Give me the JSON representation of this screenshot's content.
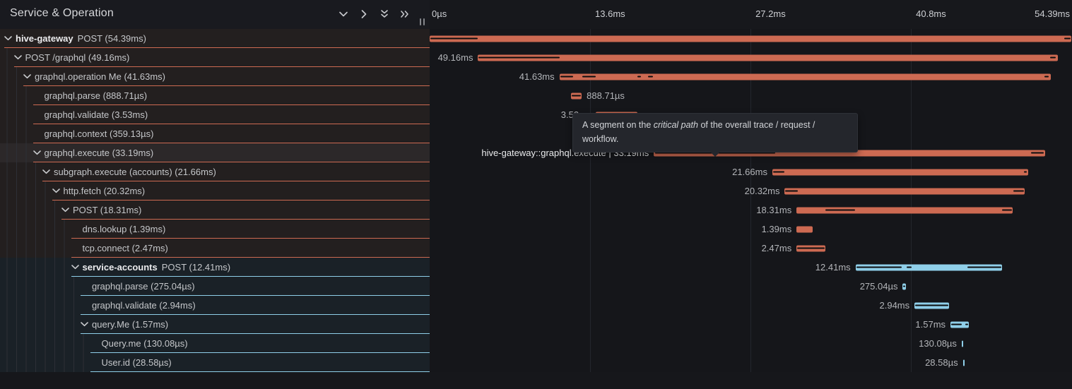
{
  "header": {
    "title": "Service & Operation",
    "icons": [
      "chevron-down-icon",
      "chevron-right-icon",
      "double-chevron-down-icon",
      "double-chevron-right-icon"
    ],
    "splitter": "resize-grip"
  },
  "colors": {
    "salmon": "#cd6a52",
    "blue": "#8fcfe9",
    "critical_path": "#0c0d0f",
    "left_row_salmon_bg": "#231f1f",
    "left_row_blue_bg": "#1a2127",
    "hover_row_bg": "#2c2829",
    "background": "#15161a"
  },
  "axis": {
    "total_ms": 54.39,
    "ticks": [
      {
        "label": "0µs",
        "ms": 0,
        "grid": false,
        "align": "left"
      },
      {
        "label": "13.6ms",
        "ms": 13.6,
        "grid": true,
        "align": "left"
      },
      {
        "label": "27.2ms",
        "ms": 27.2,
        "grid": true,
        "align": "left"
      },
      {
        "label": "40.8ms",
        "ms": 40.8,
        "grid": true,
        "align": "left"
      },
      {
        "label": "54.39ms",
        "ms": 54.39,
        "grid": false,
        "align": "right"
      }
    ]
  },
  "tooltip": {
    "pre": "A segment on the ",
    "em": "critical path",
    "post": " of the overall trace / request /",
    "line2": "workflow.",
    "anchor_row": "graphql.execute"
  },
  "rows": [
    {
      "service": "hive-gateway",
      "name": "POST (54.39ms)",
      "level": 0,
      "chev": true,
      "color": "salmon",
      "start": 0,
      "dur": 54.39,
      "label": "",
      "side": "none",
      "crit": [
        [
          0,
          4.0
        ],
        [
          53.8,
          54.39
        ]
      ]
    },
    {
      "service": "",
      "name": "POST /graphql (49.16ms)",
      "level": 1,
      "chev": true,
      "color": "salmon",
      "start": 4.1,
      "dur": 49.16,
      "label": "49.16ms",
      "side": "left",
      "crit": [
        [
          4.15,
          11.0
        ],
        [
          52.6,
          53.1
        ]
      ]
    },
    {
      "service": "",
      "name": "graphql.operation Me (41.63ms)",
      "level": 2,
      "chev": true,
      "color": "salmon",
      "start": 11.0,
      "dur": 41.63,
      "label": "41.63ms",
      "side": "left",
      "crit": [
        [
          11.1,
          12.15
        ],
        [
          12.95,
          14.05
        ],
        [
          17.6,
          17.9
        ],
        [
          18.5,
          18.95
        ],
        [
          52.1,
          52.5
        ]
      ]
    },
    {
      "service": "",
      "name": "graphql.parse (888.71µs)",
      "level": 3,
      "chev": false,
      "color": "salmon",
      "start": 12.0,
      "dur": 0.889,
      "label": "888.71µs",
      "side": "right",
      "crit": [
        [
          12.05,
          12.85
        ]
      ]
    },
    {
      "service": "",
      "name": "graphql.validate (3.53ms)",
      "level": 3,
      "chev": false,
      "color": "salmon",
      "start": 14.1,
      "dur": 3.53,
      "label": "3.53ms",
      "side": "left",
      "crit": [
        [
          14.15,
          17.58
        ]
      ]
    },
    {
      "service": "",
      "name": "graphql.context (359.13µs)",
      "level": 3,
      "chev": false,
      "color": "salmon",
      "start": 17.7,
      "dur": 0.359,
      "label": "359.13µs",
      "side": "left",
      "crit": [
        [
          17.72,
          18.05
        ]
      ]
    },
    {
      "service": "",
      "name": "graphql.execute (33.19ms)",
      "level": 3,
      "chev": true,
      "color": "salmon",
      "start": 19.0,
      "dur": 33.19,
      "label": "hive-gateway::graphql.execute | 33.19ms",
      "side": "left",
      "white": true,
      "hover": true,
      "crit": [
        [
          19.1,
          29.3
        ],
        [
          51.0,
          52.05
        ]
      ]
    },
    {
      "service": "",
      "name": "subgraph.execute (accounts) (21.66ms)",
      "level": 4,
      "chev": true,
      "color": "salmon",
      "start": 29.05,
      "dur": 21.66,
      "label": "21.66ms",
      "side": "left",
      "crit": [
        [
          29.1,
          30.05
        ],
        [
          50.35,
          50.62
        ]
      ]
    },
    {
      "service": "",
      "name": "http.fetch (20.32ms)",
      "level": 5,
      "chev": true,
      "color": "salmon",
      "start": 30.1,
      "dur": 20.32,
      "label": "20.32ms",
      "side": "left",
      "crit": [
        [
          30.15,
          31.2
        ],
        [
          49.45,
          50.35
        ]
      ]
    },
    {
      "service": "",
      "name": "POST (18.31ms)",
      "level": 6,
      "chev": true,
      "color": "salmon",
      "start": 31.1,
      "dur": 18.31,
      "label": "18.31ms",
      "side": "left",
      "crit": [
        [
          33.55,
          36.05
        ],
        [
          48.5,
          49.35
        ]
      ]
    },
    {
      "service": "",
      "name": "dns.lookup (1.39ms)",
      "level": 7,
      "chev": false,
      "color": "salmon",
      "start": 31.1,
      "dur": 1.39,
      "label": "1.39ms",
      "side": "left",
      "crit": []
    },
    {
      "service": "",
      "name": "tcp.connect (2.47ms)",
      "level": 7,
      "chev": false,
      "color": "salmon",
      "start": 31.1,
      "dur": 2.47,
      "label": "2.47ms",
      "side": "left",
      "crit": [
        [
          31.15,
          33.5
        ]
      ]
    },
    {
      "service": "service-accounts",
      "name": "POST (12.41ms)",
      "level": 7,
      "chev": true,
      "color": "blue",
      "start": 36.1,
      "dur": 12.41,
      "label": "12.41ms",
      "side": "left",
      "crit": [
        [
          36.2,
          40.0
        ],
        [
          40.45,
          40.85
        ],
        [
          45.6,
          48.45
        ]
      ]
    },
    {
      "service": "",
      "name": "graphql.parse (275.04µs)",
      "level": 8,
      "chev": false,
      "color": "blue",
      "start": 40.1,
      "dur": 0.275,
      "label": "275.04µs",
      "side": "left",
      "crit": [
        [
          40.12,
          40.3
        ]
      ]
    },
    {
      "service": "",
      "name": "graphql.validate (2.94ms)",
      "level": 8,
      "chev": false,
      "color": "blue",
      "start": 41.1,
      "dur": 2.94,
      "label": "2.94ms",
      "side": "left",
      "crit": [
        [
          41.17,
          43.95
        ]
      ]
    },
    {
      "service": "",
      "name": "query.Me (1.57ms)",
      "level": 8,
      "chev": true,
      "color": "blue",
      "start": 44.15,
      "dur": 1.57,
      "label": "1.57ms",
      "side": "left",
      "crit": [
        [
          44.22,
          45.1
        ],
        [
          45.4,
          45.62
        ]
      ]
    },
    {
      "service": "",
      "name": "Query.me (130.08µs)",
      "level": 9,
      "chev": false,
      "color": "blue",
      "start": 45.1,
      "dur": 0.13,
      "label": "130.08µs",
      "side": "left",
      "crit": []
    },
    {
      "service": "",
      "name": "User.id (28.58µs)",
      "level": 9,
      "chev": false,
      "color": "blue",
      "start": 45.2,
      "dur": 0.0286,
      "label": "28.58µs",
      "side": "left",
      "crit": []
    }
  ]
}
